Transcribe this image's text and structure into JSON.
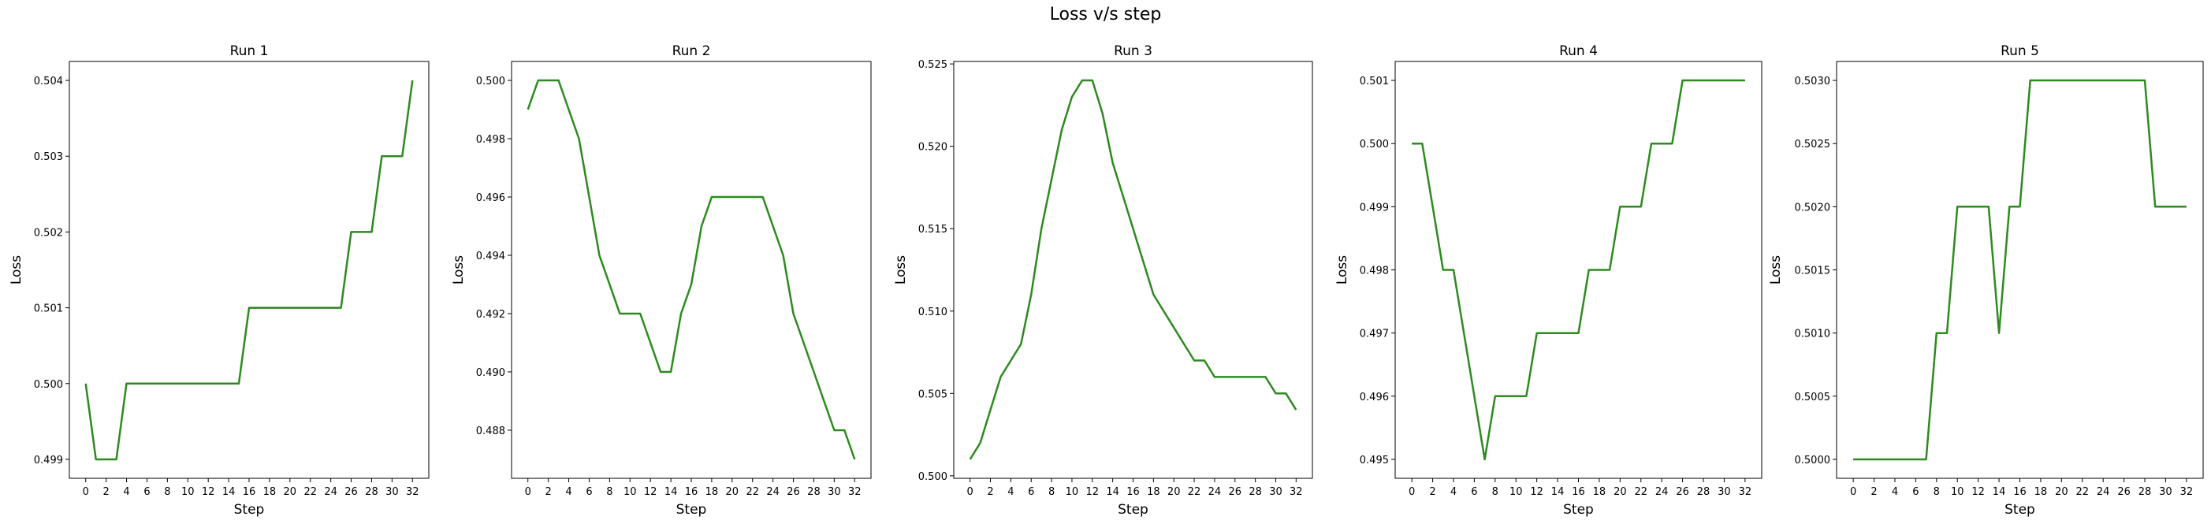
{
  "suptitle": "Loss v/s step",
  "line_color": "#2d8a1f",
  "chart_data": [
    {
      "type": "line",
      "title": "Run 1",
      "xlabel": "Step",
      "ylabel": "Loss",
      "xlim": [
        -1.6,
        33.6
      ],
      "ylim": [
        0.49875,
        0.50425
      ],
      "xticks": [
        0,
        2,
        4,
        6,
        8,
        10,
        12,
        14,
        16,
        18,
        20,
        22,
        24,
        26,
        28,
        30,
        32
      ],
      "yticks": [
        0.499,
        0.5,
        0.501,
        0.502,
        0.503,
        0.504
      ],
      "ytick_labels": [
        "0.499",
        "0.500",
        "0.501",
        "0.502",
        "0.503",
        "0.504"
      ],
      "x": [
        0,
        1,
        2,
        3,
        4,
        5,
        6,
        7,
        8,
        9,
        10,
        11,
        12,
        13,
        14,
        15,
        16,
        17,
        18,
        19,
        20,
        21,
        22,
        23,
        24,
        25,
        26,
        27,
        28,
        29,
        30,
        31,
        32
      ],
      "y": [
        0.5,
        0.499,
        0.499,
        0.499,
        0.5,
        0.5,
        0.5,
        0.5,
        0.5,
        0.5,
        0.5,
        0.5,
        0.5,
        0.5,
        0.5,
        0.5,
        0.501,
        0.501,
        0.501,
        0.501,
        0.501,
        0.501,
        0.501,
        0.501,
        0.501,
        0.501,
        0.502,
        0.502,
        0.502,
        0.503,
        0.503,
        0.503,
        0.504
      ]
    },
    {
      "type": "line",
      "title": "Run 2",
      "xlabel": "Step",
      "ylabel": "Loss",
      "xlim": [
        -1.6,
        33.6
      ],
      "ylim": [
        0.48635,
        0.50065
      ],
      "xticks": [
        0,
        2,
        4,
        6,
        8,
        10,
        12,
        14,
        16,
        18,
        20,
        22,
        24,
        26,
        28,
        30,
        32
      ],
      "yticks": [
        0.488,
        0.49,
        0.492,
        0.494,
        0.496,
        0.498,
        0.5
      ],
      "ytick_labels": [
        "0.488",
        "0.490",
        "0.492",
        "0.494",
        "0.496",
        "0.498",
        "0.500"
      ],
      "x": [
        0,
        1,
        2,
        3,
        4,
        5,
        6,
        7,
        8,
        9,
        10,
        11,
        12,
        13,
        14,
        15,
        16,
        17,
        18,
        19,
        20,
        21,
        22,
        23,
        24,
        25,
        26,
        27,
        28,
        29,
        30,
        31,
        32
      ],
      "y": [
        0.499,
        0.5,
        0.5,
        0.5,
        0.499,
        0.498,
        0.496,
        0.494,
        0.493,
        0.492,
        0.492,
        0.492,
        0.491,
        0.49,
        0.49,
        0.492,
        0.493,
        0.495,
        0.496,
        0.496,
        0.496,
        0.496,
        0.496,
        0.496,
        0.495,
        0.494,
        0.492,
        0.491,
        0.49,
        0.489,
        0.488,
        0.488,
        0.487
      ]
    },
    {
      "type": "line",
      "title": "Run 3",
      "xlabel": "Step",
      "ylabel": "Loss",
      "xlim": [
        -1.6,
        33.6
      ],
      "ylim": [
        0.49985,
        0.52515
      ],
      "xticks": [
        0,
        2,
        4,
        6,
        8,
        10,
        12,
        14,
        16,
        18,
        20,
        22,
        24,
        26,
        28,
        30,
        32
      ],
      "yticks": [
        0.5,
        0.505,
        0.51,
        0.515,
        0.52,
        0.525
      ],
      "ytick_labels": [
        "0.500",
        "0.505",
        "0.510",
        "0.515",
        "0.520",
        "0.525"
      ],
      "x": [
        0,
        1,
        2,
        3,
        4,
        5,
        6,
        7,
        8,
        9,
        10,
        11,
        12,
        13,
        14,
        15,
        16,
        17,
        18,
        19,
        20,
        21,
        22,
        23,
        24,
        25,
        26,
        27,
        28,
        29,
        30,
        31,
        32
      ],
      "y": [
        0.501,
        0.502,
        0.504,
        0.506,
        0.507,
        0.508,
        0.511,
        0.515,
        0.518,
        0.521,
        0.523,
        0.524,
        0.524,
        0.522,
        0.519,
        0.517,
        0.515,
        0.513,
        0.511,
        0.51,
        0.509,
        0.508,
        0.507,
        0.507,
        0.506,
        0.506,
        0.506,
        0.506,
        0.506,
        0.506,
        0.505,
        0.505,
        0.504
      ]
    },
    {
      "type": "line",
      "title": "Run 4",
      "xlabel": "Step",
      "ylabel": "Loss",
      "xlim": [
        -1.6,
        33.6
      ],
      "ylim": [
        0.4947,
        0.5013
      ],
      "xticks": [
        0,
        2,
        4,
        6,
        8,
        10,
        12,
        14,
        16,
        18,
        20,
        22,
        24,
        26,
        28,
        30,
        32
      ],
      "yticks": [
        0.495,
        0.496,
        0.497,
        0.498,
        0.499,
        0.5,
        0.501
      ],
      "ytick_labels": [
        "0.495",
        "0.496",
        "0.497",
        "0.498",
        "0.499",
        "0.500",
        "0.501"
      ],
      "x": [
        0,
        1,
        2,
        3,
        4,
        5,
        6,
        7,
        8,
        9,
        10,
        11,
        12,
        13,
        14,
        15,
        16,
        17,
        18,
        19,
        20,
        21,
        22,
        23,
        24,
        25,
        26,
        27,
        28,
        29,
        30,
        31,
        32
      ],
      "y": [
        0.5,
        0.5,
        0.499,
        0.498,
        0.498,
        0.497,
        0.496,
        0.495,
        0.496,
        0.496,
        0.496,
        0.496,
        0.497,
        0.497,
        0.497,
        0.497,
        0.497,
        0.498,
        0.498,
        0.498,
        0.499,
        0.499,
        0.499,
        0.5,
        0.5,
        0.5,
        0.501,
        0.501,
        0.501,
        0.501,
        0.501,
        0.501,
        0.501
      ]
    },
    {
      "type": "line",
      "title": "Run 5",
      "xlabel": "Step",
      "ylabel": "Loss",
      "xlim": [
        -1.6,
        33.6
      ],
      "ylim": [
        0.49985,
        0.50315
      ],
      "xticks": [
        0,
        2,
        4,
        6,
        8,
        10,
        12,
        14,
        16,
        18,
        20,
        22,
        24,
        26,
        28,
        30,
        32
      ],
      "yticks": [
        0.5,
        0.5005,
        0.501,
        0.5015,
        0.502,
        0.5025,
        0.503
      ],
      "ytick_labels": [
        "0.5000",
        "0.5005",
        "0.5010",
        "0.5015",
        "0.5020",
        "0.5025",
        "0.5030"
      ],
      "x": [
        0,
        1,
        2,
        3,
        4,
        5,
        6,
        7,
        8,
        9,
        10,
        11,
        12,
        13,
        14,
        15,
        16,
        17,
        18,
        19,
        20,
        21,
        22,
        23,
        24,
        25,
        26,
        27,
        28,
        29,
        30,
        31,
        32
      ],
      "y": [
        0.5,
        0.5,
        0.5,
        0.5,
        0.5,
        0.5,
        0.5,
        0.5,
        0.501,
        0.501,
        0.502,
        0.502,
        0.502,
        0.502,
        0.501,
        0.502,
        0.502,
        0.503,
        0.503,
        0.503,
        0.503,
        0.503,
        0.503,
        0.503,
        0.503,
        0.503,
        0.503,
        0.503,
        0.503,
        0.502,
        0.502,
        0.502,
        0.502
      ]
    }
  ]
}
